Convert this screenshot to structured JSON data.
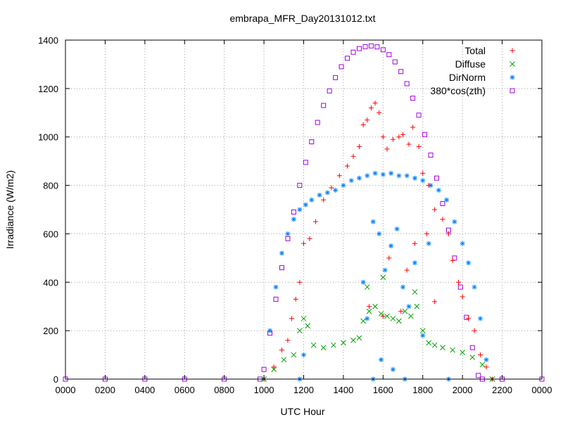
{
  "chart_data": {
    "type": "scatter",
    "title": "embrapa_MFR_Day20131012.txt",
    "xlabel": "UTC Hour",
    "ylabel": "Irradiance (W/m2)",
    "x_unit": "hours UTC",
    "xlim": [
      0,
      24
    ],
    "ylim": [
      0,
      1400
    ],
    "xticks": [
      0,
      2,
      4,
      6,
      8,
      10,
      12,
      14,
      16,
      18,
      20,
      22,
      24
    ],
    "xtick_labels": [
      "0000",
      "0200",
      "0400",
      "0600",
      "0800",
      "1000",
      "1200",
      "1400",
      "1600",
      "1800",
      "2000",
      "2200",
      "0000"
    ],
    "yticks": [
      0,
      200,
      400,
      600,
      800,
      1000,
      1200,
      1400
    ],
    "ytick_labels": [
      "0",
      "200",
      "400",
      "600",
      "800",
      "1000",
      "1200",
      "1400"
    ],
    "grid": true,
    "legend_position": "top-right",
    "series": [
      {
        "name": "Total",
        "marker": "plus",
        "color": "#ff0000",
        "points": [
          [
            10.0,
            0
          ],
          [
            10.5,
            50
          ],
          [
            10.9,
            120
          ],
          [
            11.2,
            160
          ],
          [
            11.4,
            250
          ],
          [
            11.6,
            330
          ],
          [
            11.8,
            400
          ],
          [
            12.0,
            560
          ],
          [
            12.3,
            580
          ],
          [
            12.6,
            650
          ],
          [
            13.0,
            740
          ],
          [
            13.4,
            790
          ],
          [
            13.8,
            840
          ],
          [
            14.2,
            880
          ],
          [
            14.5,
            920
          ],
          [
            14.8,
            960
          ],
          [
            15.0,
            1050
          ],
          [
            15.2,
            1070
          ],
          [
            15.4,
            1120
          ],
          [
            15.6,
            1140
          ],
          [
            15.8,
            1100
          ],
          [
            16.0,
            1000
          ],
          [
            16.2,
            950
          ],
          [
            16.5,
            990
          ],
          [
            16.8,
            1000
          ],
          [
            17.0,
            1010
          ],
          [
            17.3,
            970
          ],
          [
            17.5,
            1040
          ],
          [
            17.8,
            960
          ],
          [
            18.0,
            850
          ],
          [
            18.3,
            800
          ],
          [
            18.6,
            700
          ],
          [
            19.0,
            660
          ],
          [
            19.3,
            600
          ],
          [
            19.5,
            490
          ],
          [
            19.8,
            400
          ],
          [
            20.0,
            340
          ],
          [
            20.3,
            250
          ],
          [
            20.6,
            200
          ],
          [
            20.9,
            100
          ],
          [
            21.2,
            50
          ],
          [
            21.5,
            0
          ],
          [
            15.3,
            300
          ],
          [
            16.0,
            260
          ],
          [
            16.3,
            500
          ],
          [
            16.9,
            280
          ],
          [
            17.2,
            450
          ],
          [
            17.6,
            560
          ],
          [
            18.2,
            600
          ],
          [
            18.6,
            320
          ]
        ]
      },
      {
        "name": "Diffuse",
        "marker": "cross",
        "color": "#00a000",
        "points": [
          [
            10.0,
            0
          ],
          [
            10.5,
            40
          ],
          [
            11.0,
            80
          ],
          [
            11.5,
            100
          ],
          [
            11.8,
            200
          ],
          [
            12.0,
            250
          ],
          [
            12.2,
            220
          ],
          [
            12.5,
            140
          ],
          [
            13.0,
            130
          ],
          [
            13.5,
            140
          ],
          [
            14.0,
            150
          ],
          [
            14.5,
            160
          ],
          [
            14.8,
            170
          ],
          [
            15.0,
            240
          ],
          [
            15.3,
            280
          ],
          [
            15.6,
            300
          ],
          [
            15.9,
            270
          ],
          [
            16.2,
            260
          ],
          [
            16.5,
            250
          ],
          [
            16.8,
            240
          ],
          [
            17.1,
            280
          ],
          [
            17.4,
            260
          ],
          [
            17.7,
            300
          ],
          [
            18.0,
            200
          ],
          [
            18.3,
            150
          ],
          [
            18.6,
            140
          ],
          [
            19.0,
            130
          ],
          [
            19.5,
            120
          ],
          [
            20.0,
            110
          ],
          [
            20.5,
            90
          ],
          [
            21.0,
            60
          ],
          [
            21.5,
            0
          ],
          [
            15.2,
            380
          ],
          [
            16.0,
            420
          ],
          [
            17.6,
            360
          ]
        ]
      },
      {
        "name": "DirNorm",
        "marker": "star",
        "color": "#0080ff",
        "points": [
          [
            10.0,
            0
          ],
          [
            10.3,
            200
          ],
          [
            10.6,
            380
          ],
          [
            10.9,
            520
          ],
          [
            11.2,
            600
          ],
          [
            11.5,
            660
          ],
          [
            11.8,
            700
          ],
          [
            12.1,
            720
          ],
          [
            12.4,
            740
          ],
          [
            12.8,
            760
          ],
          [
            13.2,
            770
          ],
          [
            13.6,
            780
          ],
          [
            14.0,
            800
          ],
          [
            14.4,
            820
          ],
          [
            14.8,
            830
          ],
          [
            15.2,
            840
          ],
          [
            15.6,
            850
          ],
          [
            16.0,
            845
          ],
          [
            16.4,
            850
          ],
          [
            16.8,
            840
          ],
          [
            17.2,
            840
          ],
          [
            17.6,
            830
          ],
          [
            18.0,
            820
          ],
          [
            18.4,
            800
          ],
          [
            18.8,
            780
          ],
          [
            19.2,
            740
          ],
          [
            19.6,
            650
          ],
          [
            20.0,
            560
          ],
          [
            20.3,
            480
          ],
          [
            20.6,
            380
          ],
          [
            20.9,
            250
          ],
          [
            21.2,
            80
          ],
          [
            21.5,
            0
          ],
          [
            15.0,
            400
          ],
          [
            15.2,
            250
          ],
          [
            15.5,
            650
          ],
          [
            15.8,
            600
          ],
          [
            16.1,
            450
          ],
          [
            16.4,
            550
          ],
          [
            16.7,
            620
          ],
          [
            17.0,
            380
          ],
          [
            17.3,
            300
          ],
          [
            17.6,
            480
          ],
          [
            18.0,
            180
          ],
          [
            18.3,
            560
          ],
          [
            11.8,
            0
          ],
          [
            12.0,
            100
          ],
          [
            15.5,
            0
          ],
          [
            15.9,
            80
          ],
          [
            16.5,
            40
          ],
          [
            17.1,
            0
          ],
          [
            19.3,
            0
          ]
        ]
      },
      {
        "name": "380*cos(zth)",
        "marker": "square",
        "color": "#a000e0",
        "points": [
          [
            0,
            0
          ],
          [
            2,
            0
          ],
          [
            4,
            0
          ],
          [
            6,
            0
          ],
          [
            8,
            0
          ],
          [
            9.8,
            0
          ],
          [
            10.0,
            40
          ],
          [
            10.3,
            190
          ],
          [
            10.6,
            330
          ],
          [
            10.9,
            460
          ],
          [
            11.2,
            580
          ],
          [
            11.5,
            690
          ],
          [
            11.8,
            800
          ],
          [
            12.1,
            895
          ],
          [
            12.4,
            980
          ],
          [
            12.7,
            1060
          ],
          [
            13.0,
            1130
          ],
          [
            13.3,
            1190
          ],
          [
            13.6,
            1245
          ],
          [
            13.9,
            1290
          ],
          [
            14.2,
            1325
          ],
          [
            14.5,
            1350
          ],
          [
            14.8,
            1365
          ],
          [
            15.1,
            1373
          ],
          [
            15.4,
            1376
          ],
          [
            15.7,
            1372
          ],
          [
            16.0,
            1360
          ],
          [
            16.3,
            1340
          ],
          [
            16.6,
            1310
          ],
          [
            16.9,
            1270
          ],
          [
            17.2,
            1220
          ],
          [
            17.5,
            1160
          ],
          [
            17.8,
            1090
          ],
          [
            18.1,
            1010
          ],
          [
            18.4,
            925
          ],
          [
            18.7,
            830
          ],
          [
            19.0,
            725
          ],
          [
            19.3,
            615
          ],
          [
            19.6,
            500
          ],
          [
            19.9,
            380
          ],
          [
            20.2,
            255
          ],
          [
            20.5,
            130
          ],
          [
            20.8,
            15
          ],
          [
            21.0,
            0
          ],
          [
            22,
            0
          ],
          [
            24,
            0
          ]
        ]
      }
    ]
  }
}
